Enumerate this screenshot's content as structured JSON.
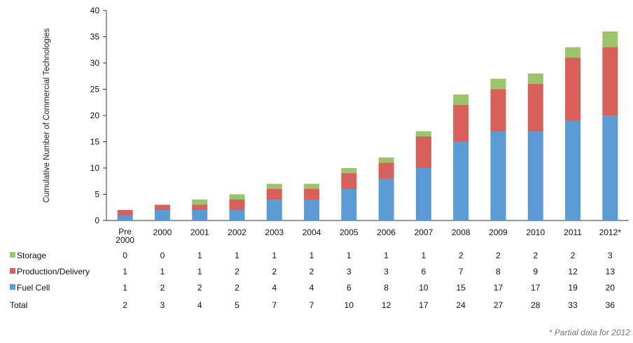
{
  "chart_data": {
    "type": "bar",
    "stacked": true,
    "ylabel": "Cumulative Number of Commercial Technologies",
    "xlabel": "",
    "ylim": [
      0,
      40
    ],
    "yticks": [
      0,
      5,
      10,
      15,
      20,
      25,
      30,
      35,
      40
    ],
    "grid": false,
    "categories": [
      "Pre 2000",
      "2000",
      "2001",
      "2002",
      "2003",
      "2004",
      "2005",
      "2006",
      "2007",
      "2008",
      "2009",
      "2010",
      "2011",
      "2012*"
    ],
    "series": [
      {
        "name": "Fuel Cell",
        "color": "#5b9bd5",
        "values": [
          1,
          2,
          2,
          2,
          4,
          4,
          6,
          8,
          10,
          15,
          17,
          17,
          19,
          20
        ]
      },
      {
        "name": "Production/Delivery",
        "color": "#d9605a",
        "values": [
          1,
          1,
          1,
          2,
          2,
          2,
          3,
          3,
          6,
          7,
          8,
          9,
          12,
          13
        ]
      },
      {
        "name": "Storage",
        "color": "#9bc46b",
        "values": [
          0,
          0,
          1,
          1,
          1,
          1,
          1,
          1,
          1,
          2,
          2,
          2,
          2,
          3
        ]
      }
    ],
    "table": {
      "rows": [
        {
          "label": "Storage",
          "color": "#9bc46b",
          "values": [
            "0",
            "0",
            "1",
            "1",
            "1",
            "1",
            "1",
            "1",
            "1",
            "2",
            "2",
            "2",
            "2",
            "3"
          ]
        },
        {
          "label": "Production/Delivery",
          "color": "#d9605a",
          "values": [
            "1",
            "1",
            "1",
            "2",
            "2",
            "2",
            "3",
            "3",
            "6",
            "7",
            "8",
            "9",
            "12",
            "13"
          ]
        },
        {
          "label": "Fuel Cell",
          "color": "#5b9bd5",
          "values": [
            "1",
            "2",
            "2",
            "2",
            "4",
            "4",
            "6",
            "8",
            "10",
            "15",
            "17",
            "17",
            "19",
            "20"
          ]
        },
        {
          "label": "Total",
          "color": "",
          "values": [
            "2",
            "3",
            "4",
            "5",
            "7",
            "7",
            "10",
            "12",
            "17",
            "24",
            "27",
            "28",
            "33",
            "36"
          ]
        }
      ]
    }
  },
  "footnote": "* Partial data for 2012"
}
